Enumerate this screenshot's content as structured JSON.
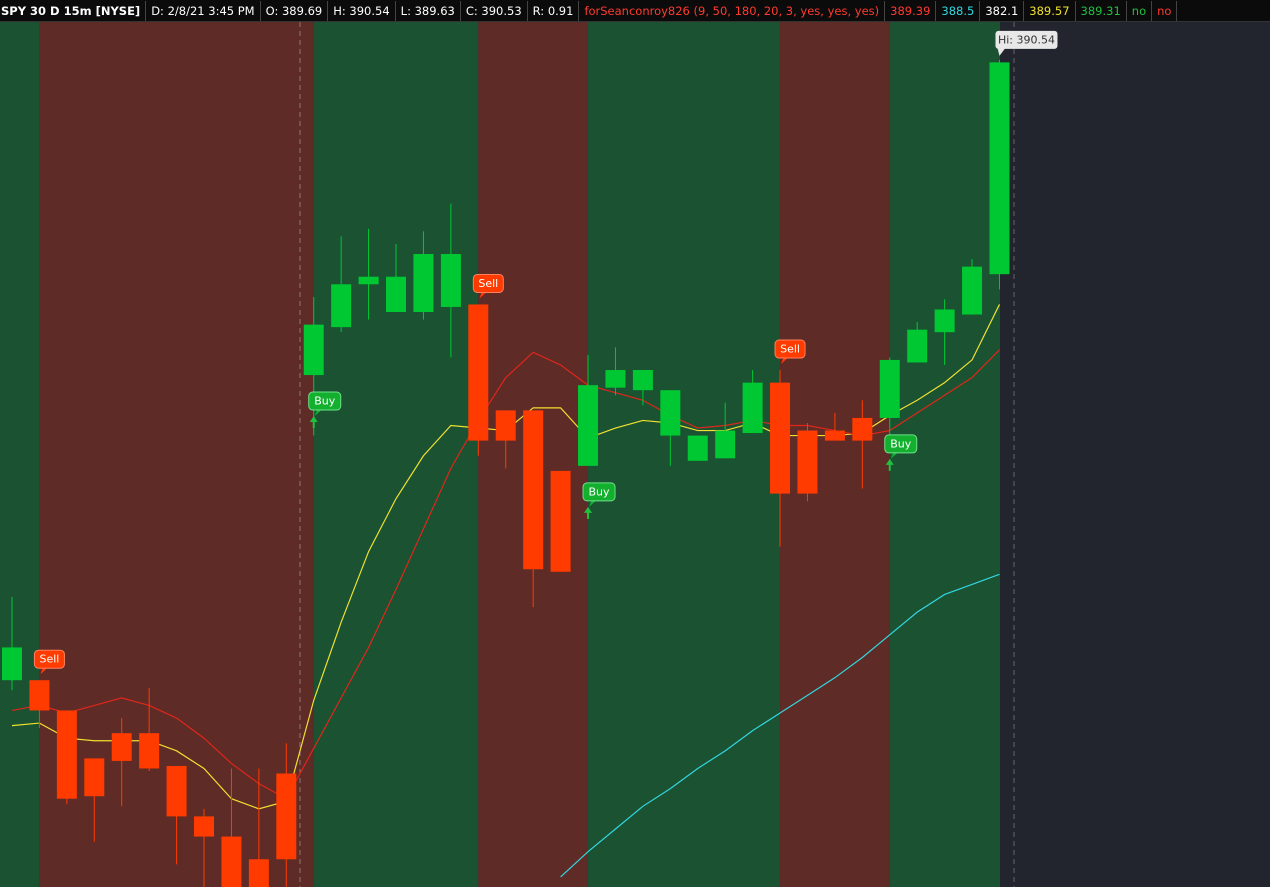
{
  "header": {
    "items": [
      {
        "text": "SPY 30 D 15m [NYSE]",
        "color": "#ffffff"
      },
      {
        "text": "D: 2/8/21 3:45 PM",
        "color": "#ffffff"
      },
      {
        "text": "O: 389.69",
        "color": "#ffffff"
      },
      {
        "text": "H: 390.54",
        "color": "#ffffff"
      },
      {
        "text": "L: 389.63",
        "color": "#ffffff"
      },
      {
        "text": "C: 390.53",
        "color": "#ffffff"
      },
      {
        "text": "R: 0.91",
        "color": "#ffffff"
      },
      {
        "text": "forSeanconroy826 (9, 50, 180, 20, 3, yes, yes, yes)",
        "color": "#ff3b30"
      },
      {
        "text": "389.39",
        "color": "#ff3b30"
      },
      {
        "text": "388.5",
        "color": "#33d6e0"
      },
      {
        "text": "382.1",
        "color": "#ffffff"
      },
      {
        "text": "389.57",
        "color": "#f0e030"
      },
      {
        "text": "389.31",
        "color": "#20c040"
      },
      {
        "text": "no",
        "color": "#20c040"
      },
      {
        "text": "no",
        "color": "#ff3b30"
      }
    ]
  },
  "chart_data": {
    "type": "candlestick",
    "ylim": [
      387.26,
      390.69
    ],
    "up_color": "#00c832",
    "down_color": "#ff3b00",
    "open": [
      388.08,
      388.08,
      387.96,
      387.77,
      387.87,
      387.87,
      387.74,
      387.54,
      387.46,
      387.37,
      387.71,
      389.29,
      389.48,
      389.65,
      389.54,
      389.54,
      389.56,
      389.57,
      389.15,
      389.15,
      388.91,
      388.93,
      389.24,
      389.23,
      389.05,
      388.95,
      388.96,
      389.06,
      389.26,
      389.07,
      389.07,
      389.12,
      389.12,
      389.34,
      389.46,
      389.53,
      389.69
    ],
    "high": [
      388.41,
      388.08,
      387.96,
      387.77,
      387.93,
      388.05,
      387.74,
      387.57,
      387.73,
      387.73,
      387.83,
      389.6,
      389.84,
      389.87,
      389.81,
      389.86,
      389.97,
      389.57,
      389.15,
      389.15,
      388.91,
      389.37,
      389.4,
      389.31,
      389.23,
      389.05,
      389.18,
      389.31,
      389.31,
      389.1,
      389.14,
      389.19,
      389.36,
      389.5,
      389.59,
      389.75,
      390.54
    ],
    "low": [
      388.04,
      387.89,
      387.59,
      387.44,
      387.58,
      387.72,
      387.35,
      387.26,
      387.26,
      387.26,
      387.26,
      389.05,
      389.46,
      389.51,
      389.54,
      389.51,
      389.36,
      388.97,
      388.92,
      388.37,
      388.51,
      388.93,
      389.21,
      389.17,
      388.93,
      388.95,
      388.96,
      389.06,
      388.61,
      388.79,
      389.03,
      388.84,
      389.03,
      389.34,
      389.33,
      389.53,
      389.63
    ],
    "close": [
      388.21,
      387.96,
      387.61,
      387.62,
      387.76,
      387.73,
      387.54,
      387.46,
      387.26,
      387.26,
      387.37,
      389.49,
      389.65,
      389.68,
      389.68,
      389.77,
      389.77,
      389.03,
      389.03,
      388.52,
      388.51,
      389.25,
      389.31,
      389.31,
      389.23,
      389.05,
      389.07,
      389.26,
      388.82,
      388.82,
      389.03,
      389.03,
      389.35,
      389.47,
      389.55,
      389.72,
      390.53
    ],
    "signals": [
      null,
      "Sell",
      null,
      null,
      null,
      null,
      null,
      null,
      null,
      null,
      null,
      "Buy",
      null,
      null,
      null,
      null,
      null,
      "Sell",
      null,
      null,
      null,
      "Buy",
      null,
      null,
      null,
      null,
      null,
      null,
      "Sell",
      null,
      null,
      null,
      "Buy",
      null,
      null,
      null,
      null
    ],
    "overlays": [
      {
        "color": "#f0e030",
        "values": [
          387.9,
          387.91,
          387.85,
          387.84,
          387.84,
          387.84,
          387.8,
          387.73,
          387.61,
          387.57,
          387.6,
          388.0,
          388.31,
          388.59,
          388.8,
          388.97,
          389.09,
          389.08,
          389.07,
          389.16,
          389.16,
          389.04,
          389.08,
          389.11,
          389.1,
          389.07,
          389.07,
          389.1,
          389.05,
          389.05,
          389.05,
          389.06,
          389.13,
          389.19,
          389.26,
          389.35,
          389.57
        ]
      },
      {
        "color": "#e0261a",
        "values": [
          387.96,
          387.98,
          387.95,
          387.98,
          388.01,
          387.98,
          387.93,
          387.85,
          387.75,
          387.67,
          387.61,
          387.81,
          388.01,
          388.21,
          388.44,
          388.68,
          388.92,
          389.11,
          389.28,
          389.38,
          389.33,
          389.25,
          389.22,
          389.19,
          389.13,
          389.08,
          389.09,
          389.11,
          389.09,
          389.09,
          389.07,
          389.05,
          389.07,
          389.14,
          389.21,
          389.28,
          389.39
        ]
      },
      {
        "color": "#33d6e0",
        "values": [
          null,
          null,
          null,
          null,
          null,
          null,
          null,
          null,
          null,
          null,
          null,
          null,
          null,
          null,
          null,
          null,
          null,
          null,
          null,
          null,
          387.3,
          387.4,
          387.49,
          387.58,
          387.65,
          387.73,
          387.8,
          387.88,
          387.95,
          388.02,
          388.09,
          388.17,
          388.26,
          388.35,
          388.42,
          388.46,
          388.5
        ]
      }
    ],
    "hi_label": "Hi: 390.54"
  }
}
